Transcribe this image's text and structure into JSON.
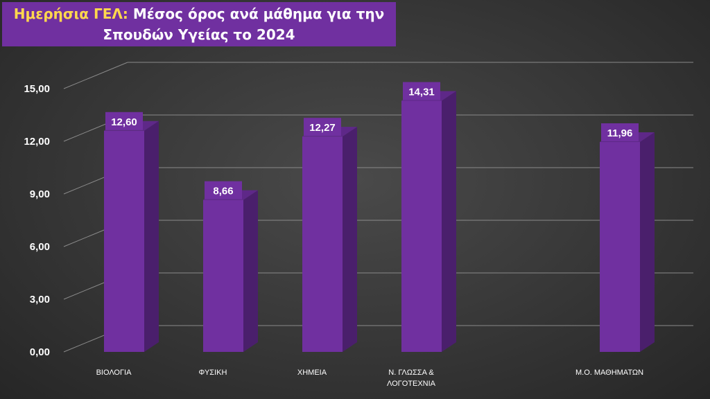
{
  "title": {
    "highlight": "Ημερήσια ΓΕΛ:",
    "line1_rest": "Μέσος όρος ανά μάθημα για την",
    "line2": "Σπουδών Υγείας το 2024"
  },
  "colors": {
    "bar_front": "#7030a0",
    "bar_side": "#4a1f6c",
    "bar_top": "#5e2888",
    "title_bg": "#7030a0",
    "title_highlight": "#ffd84d",
    "gridline": "#8a8a8a"
  },
  "chart_data": {
    "type": "bar",
    "categories": [
      "ΒΙΟΛΟΓΙΑ",
      "ΦΥΣΙΚΗ",
      "ΧΗΜΕΙΑ",
      "Ν. ΓΛΩΣΣΑ & ΛΟΓΟΤΕΧΝΙΑ",
      "",
      "Μ.Ο. ΜΑΘΗΜΑΤΩΝ"
    ],
    "category_lines": [
      [
        "ΒΙΟΛΟΓΙΑ"
      ],
      [
        "ΦΥΣΙΚΗ"
      ],
      [
        "ΧΗΜΕΙΑ"
      ],
      [
        "Ν. ΓΛΩΣΣΑ &",
        "ΛΟΓΟΤΕΧΝΙΑ"
      ],
      [
        ""
      ],
      [
        "Μ.Ο. ΜΑΘΗΜΑΤΩΝ"
      ]
    ],
    "values": [
      12.6,
      8.66,
      12.27,
      14.31,
      null,
      11.96
    ],
    "data_labels": [
      "12,60",
      "8,66",
      "12,27",
      "14,31",
      "",
      "11,96"
    ],
    "ylim": [
      0,
      15
    ],
    "yticks": [
      0,
      3,
      6,
      9,
      12,
      15
    ],
    "ytick_labels": [
      "0,00",
      "3,00",
      "6,00",
      "9,00",
      "12,00",
      "15,00"
    ],
    "grid": true,
    "style": "3d-column",
    "legend": "none"
  }
}
